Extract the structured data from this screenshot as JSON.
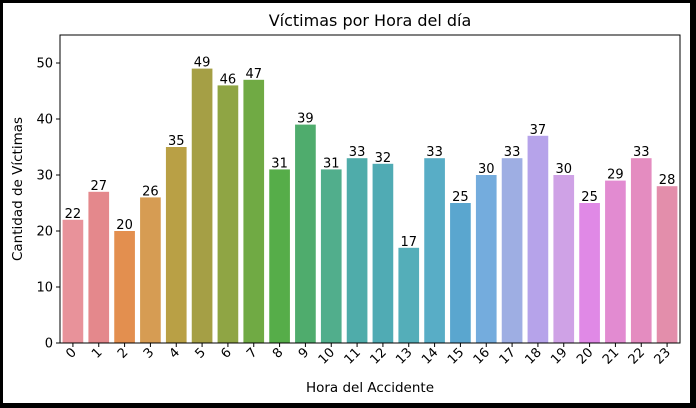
{
  "chart_data": {
    "type": "bar",
    "title": "Víctimas por Hora del día",
    "xlabel": "Hora del Accidente",
    "ylabel": "Cantidad de Víctimas",
    "categories": [
      "0",
      "1",
      "2",
      "3",
      "4",
      "5",
      "6",
      "7",
      "8",
      "9",
      "10",
      "11",
      "12",
      "13",
      "14",
      "15",
      "16",
      "17",
      "18",
      "19",
      "20",
      "21",
      "22",
      "23"
    ],
    "values": [
      22,
      27,
      20,
      26,
      35,
      49,
      46,
      47,
      31,
      39,
      31,
      33,
      32,
      17,
      33,
      25,
      30,
      33,
      37,
      30,
      25,
      29,
      33,
      28
    ],
    "colors": [
      "#e8929a",
      "#e4888c",
      "#e38f4f",
      "#d69c53",
      "#b9a045",
      "#a59f45",
      "#8fa544",
      "#70aa44",
      "#56ad49",
      "#4fac6d",
      "#51ae8c",
      "#4facaa",
      "#50abb4",
      "#54aeb9",
      "#58adc6",
      "#5aa6cf",
      "#74acdd",
      "#9eaee3",
      "#b6a3ea",
      "#cfa2e6",
      "#e089e6",
      "#e28bd1",
      "#e48cc0",
      "#e38eab"
    ],
    "ylim": [
      0,
      55
    ],
    "yticks": [
      0,
      10,
      20,
      30,
      40,
      50
    ],
    "grid": false,
    "legend": "none"
  }
}
